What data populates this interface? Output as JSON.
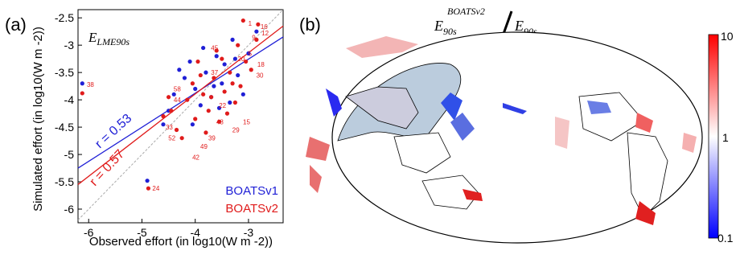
{
  "panel_a": {
    "label": "(a)",
    "title_main": "E",
    "title_sub": "LME90s",
    "xlabel": "Observed effort (in log10(W m -2))",
    "ylabel": "Simulated effort (in log10(W m -2))",
    "r1": "r = 0.53",
    "r2": "r = 0.57",
    "legend1": "BOATSv1",
    "legend2": "BOATSv2"
  },
  "panel_b": {
    "label": "(b)",
    "title_num_main": "E",
    "title_num_sub": "90s",
    "title_num_sup": "BOATSv2",
    "title_den_main": "E",
    "title_den_sub": "90s",
    "colorbar_ticks": [
      "10",
      "1",
      "0.1"
    ]
  },
  "colors": {
    "v1": "#1f1fd6",
    "v2": "#e01b1b"
  },
  "chart_data": {
    "type": "scatter",
    "xlim": [
      -6.2,
      -2.35
    ],
    "ylim": [
      -6.25,
      -2.35
    ],
    "xticks": [
      -6,
      -5,
      -4,
      -3
    ],
    "yticks": [
      -6,
      -5.5,
      -5,
      -4.5,
      -4,
      -3.5,
      -3,
      -2.5
    ],
    "series": [
      {
        "name": "BOATSv1",
        "fit": [
          [
            -6.2,
            -5.25
          ],
          [
            -2.35,
            -2.85
          ]
        ],
        "points": [
          [
            -6.12,
            -3.7
          ],
          [
            -4.9,
            -5.48
          ],
          [
            -4.6,
            -4.45
          ],
          [
            -4.5,
            -4.2
          ],
          [
            -4.4,
            -3.9
          ],
          [
            -4.2,
            -3.6
          ],
          [
            -4.1,
            -3.3
          ],
          [
            -4.0,
            -3.8
          ],
          [
            -3.9,
            -4.1
          ],
          [
            -3.8,
            -3.5
          ],
          [
            -3.7,
            -3.95
          ],
          [
            -3.6,
            -3.2
          ],
          [
            -3.5,
            -3.7
          ],
          [
            -3.45,
            -3.35
          ],
          [
            -3.3,
            -2.9
          ],
          [
            -3.2,
            -3.55
          ],
          [
            -3.1,
            -3.9
          ],
          [
            -3.0,
            -3.15
          ],
          [
            -2.85,
            -2.75
          ],
          [
            -3.55,
            -4.15
          ],
          [
            -4.3,
            -3.45
          ],
          [
            -3.85,
            -3.05
          ],
          [
            -4.05,
            -4.45
          ],
          [
            -3.25,
            -3.25
          ],
          [
            -3.65,
            -3.75
          ],
          [
            -3.35,
            -4.05
          ]
        ]
      },
      {
        "name": "BOATSv2",
        "fit": [
          [
            -6.2,
            -5.55
          ],
          [
            -2.35,
            -2.65
          ]
        ],
        "points": [
          [
            -6.12,
            -3.88
          ],
          [
            -4.88,
            -5.62
          ],
          [
            -4.45,
            -4.2
          ],
          [
            -4.35,
            -4.55
          ],
          [
            -4.25,
            -4.7
          ],
          [
            -4.15,
            -4.0
          ],
          [
            -4.05,
            -3.7
          ],
          [
            -3.95,
            -3.3
          ],
          [
            -3.85,
            -3.9
          ],
          [
            -3.75,
            -4.2
          ],
          [
            -3.65,
            -3.6
          ],
          [
            -3.55,
            -4.4
          ],
          [
            -3.45,
            -3.85
          ],
          [
            -3.35,
            -3.5
          ],
          [
            -3.25,
            -4.05
          ],
          [
            -3.15,
            -3.75
          ],
          [
            -3.05,
            -3.3
          ],
          [
            -2.95,
            -3.45
          ],
          [
            -3.1,
            -2.55
          ],
          [
            -2.82,
            -2.62
          ],
          [
            -2.85,
            -2.9
          ],
          [
            -3.2,
            -3.0
          ],
          [
            -4.5,
            -3.95
          ],
          [
            -4.6,
            -4.3
          ],
          [
            -3.9,
            -3.55
          ],
          [
            -3.7,
            -3.95
          ],
          [
            -3.5,
            -3.25
          ],
          [
            -3.4,
            -4.25
          ],
          [
            -3.3,
            -3.7
          ],
          [
            -4.0,
            -4.35
          ],
          [
            -3.8,
            -4.6
          ],
          [
            -3.6,
            -3.1
          ]
        ]
      }
    ],
    "point_labels": [
      {
        "text": "38",
        "x": -6.08,
        "y": -3.72
      },
      {
        "text": "24",
        "x": -4.85,
        "y": -5.62
      },
      {
        "text": "1",
        "x": -3.05,
        "y": -2.6
      },
      {
        "text": "16",
        "x": -2.82,
        "y": -2.66
      },
      {
        "text": "12",
        "x": -2.8,
        "y": -2.78
      },
      {
        "text": "9",
        "x": -2.98,
        "y": -2.86
      },
      {
        "text": "45",
        "x": -3.75,
        "y": -3.05
      },
      {
        "text": "5",
        "x": -3.05,
        "y": -3.15
      },
      {
        "text": "20",
        "x": -3.25,
        "y": -3.25
      },
      {
        "text": "18",
        "x": -2.88,
        "y": -3.35
      },
      {
        "text": "37",
        "x": -3.75,
        "y": -3.5
      },
      {
        "text": "30",
        "x": -2.9,
        "y": -3.55
      },
      {
        "text": "58",
        "x": -4.45,
        "y": -3.8
      },
      {
        "text": "44",
        "x": -4.45,
        "y": -4.0
      },
      {
        "text": "33",
        "x": -4.6,
        "y": -4.5
      },
      {
        "text": "52",
        "x": -4.55,
        "y": -4.7
      },
      {
        "text": "42",
        "x": -4.1,
        "y": -5.05
      },
      {
        "text": "49",
        "x": -3.95,
        "y": -4.85
      },
      {
        "text": "39",
        "x": -3.8,
        "y": -4.7
      },
      {
        "text": "29",
        "x": -3.35,
        "y": -4.55
      },
      {
        "text": "15",
        "x": -3.15,
        "y": -4.4
      },
      {
        "text": "22",
        "x": -3.6,
        "y": -4.1
      },
      {
        "text": "48",
        "x": -3.65,
        "y": -4.4
      }
    ]
  },
  "colorbar": {
    "type": "log",
    "min": 0.1,
    "max": 10,
    "colors": [
      "#0000ff",
      "#ffffff",
      "#ff0000"
    ]
  }
}
